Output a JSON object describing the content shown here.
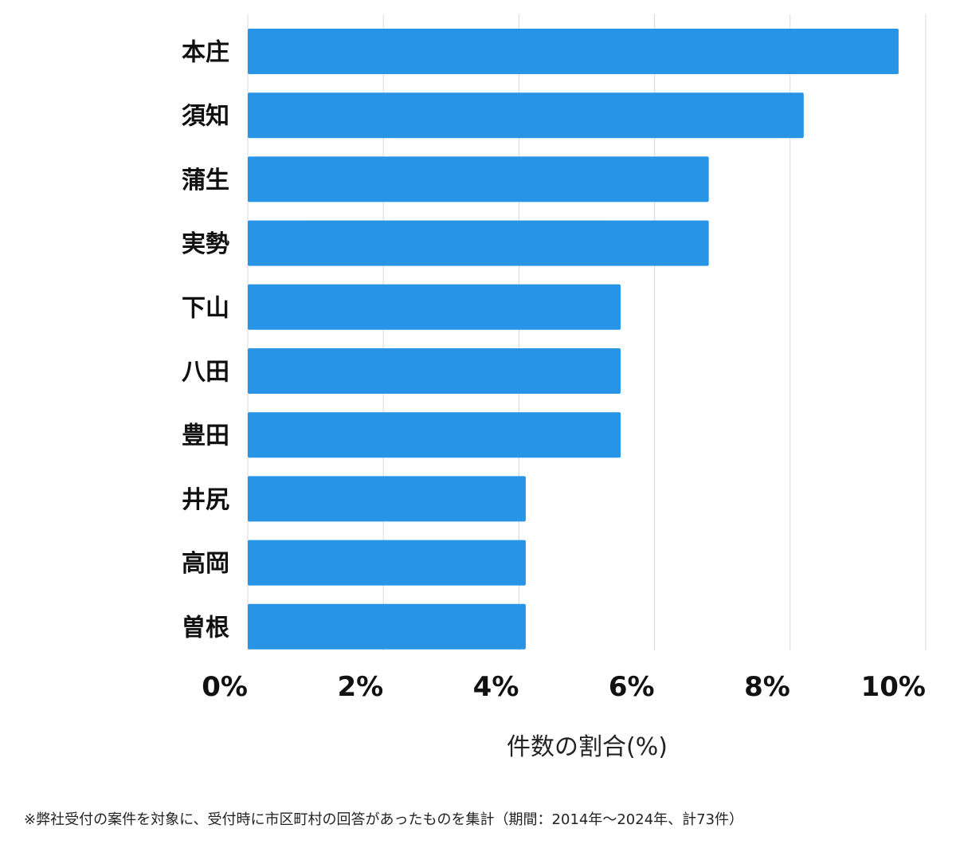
{
  "chart_data": {
    "type": "bar",
    "orientation": "horizontal",
    "categories": [
      "本庄",
      "須知",
      "蒲生",
      "実勢",
      "下山",
      "八田",
      "豊田",
      "井尻",
      "高岡",
      "曽根"
    ],
    "values": [
      9.6,
      8.2,
      6.8,
      6.8,
      5.5,
      5.5,
      5.5,
      4.1,
      4.1,
      4.1
    ],
    "xlabel": "件数の割合(%)",
    "xlim": [
      0,
      10
    ],
    "x_ticks": [
      0,
      2,
      4,
      6,
      8,
      10
    ],
    "x_tick_labels": [
      "0%",
      "2%",
      "4%",
      "6%",
      "8%",
      "10%"
    ],
    "grid": "vertical",
    "bar_color": "#2794e6",
    "grid_color": "#d9d9d9"
  },
  "footnote": "※弊社受付の案件を対象に、受付時に市区町村の回答があったものを集計（期間：2014年～2024年、計73件）"
}
